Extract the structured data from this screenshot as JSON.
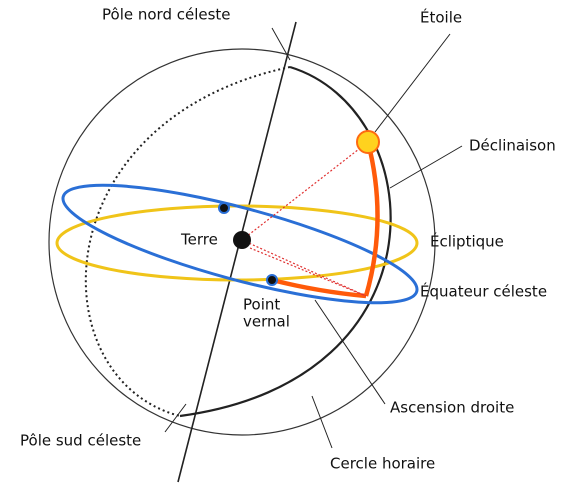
{
  "labels": {
    "north_pole": "Pôle nord céleste",
    "star": "Étoile",
    "declination": "Déclinaison",
    "ecliptic": "Écliptique",
    "earth": "Terre",
    "vernal_point": [
      "Point",
      "vernal"
    ],
    "celestial_equator": "Équateur céleste",
    "right_ascension": "Ascension droite",
    "south_pole": "Pôle sud céleste",
    "hour_circle": "Cercle horaire"
  }
}
